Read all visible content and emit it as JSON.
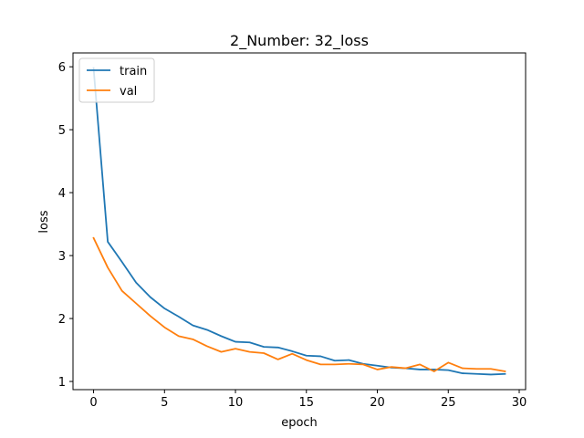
{
  "chart_data": {
    "type": "line",
    "title": "2_Number: 32_loss",
    "xlabel": "epoch",
    "ylabel": "loss",
    "xlim": [
      -1.45,
      30.45
    ],
    "ylim": [
      0.87,
      6.22
    ],
    "xticks": [
      0,
      5,
      10,
      15,
      20,
      25,
      30
    ],
    "yticks": [
      1,
      2,
      3,
      4,
      5,
      6
    ],
    "grid": false,
    "legend_position": "top-left",
    "x": [
      0,
      1,
      2,
      3,
      4,
      5,
      6,
      7,
      8,
      9,
      10,
      11,
      12,
      13,
      14,
      15,
      16,
      17,
      18,
      19,
      20,
      21,
      22,
      23,
      24,
      25,
      26,
      27,
      28,
      29
    ],
    "series": [
      {
        "name": "train",
        "color": "#1f77b4",
        "values": [
          5.98,
          3.22,
          2.9,
          2.57,
          2.34,
          2.16,
          2.03,
          1.89,
          1.82,
          1.72,
          1.63,
          1.62,
          1.55,
          1.54,
          1.48,
          1.41,
          1.4,
          1.33,
          1.34,
          1.28,
          1.25,
          1.22,
          1.21,
          1.19,
          1.19,
          1.18,
          1.13,
          1.12,
          1.11,
          1.12
        ]
      },
      {
        "name": "val",
        "color": "#ff7f0e",
        "values": [
          3.28,
          2.81,
          2.44,
          2.24,
          2.04,
          1.86,
          1.72,
          1.67,
          1.56,
          1.47,
          1.52,
          1.47,
          1.45,
          1.35,
          1.44,
          1.34,
          1.27,
          1.27,
          1.28,
          1.27,
          1.19,
          1.23,
          1.21,
          1.27,
          1.16,
          1.3,
          1.21,
          1.2,
          1.2,
          1.16
        ]
      }
    ]
  }
}
